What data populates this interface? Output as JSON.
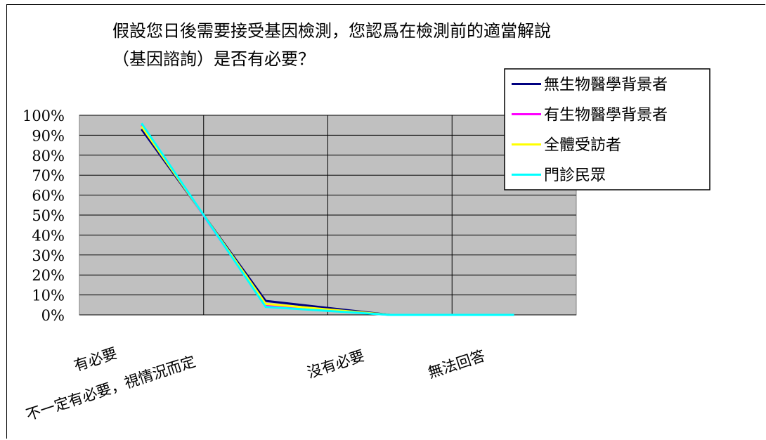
{
  "chart_data": {
    "type": "line",
    "title": "假設您日後需要接受基因檢測，您認爲在檢測前的適當解說（基因諮詢）是否有必要？",
    "title_lines": [
      "假設您日後需要接受基因檢測，您認爲在檢測前的適當解說",
      "（基因諮詢）是否有必要？"
    ],
    "categories": [
      "有必要",
      "不一定有必要，視情況而定",
      "沒有必要",
      "無法回答"
    ],
    "y_ticks": [
      "100%",
      "90%",
      "80%",
      "70%",
      "60%",
      "50%",
      "40%",
      "30%",
      "20%",
      "10%",
      "0%"
    ],
    "ylim": [
      0,
      100
    ],
    "y_unit": "%",
    "grid": true,
    "plot_background": "#c0c0c0",
    "legend_position": "top-right",
    "series": [
      {
        "name": "無生物醫學背景者",
        "color": "#000080",
        "values": [
          93,
          7,
          0,
          0
        ]
      },
      {
        "name": "有生物醫學背景者",
        "color": "#ff00ff",
        "values": [
          95,
          4.5,
          0,
          0
        ]
      },
      {
        "name": "全體受訪者",
        "color": "#ffff00",
        "values": [
          94.5,
          5.5,
          0,
          0
        ]
      },
      {
        "name": "門診民眾",
        "color": "#00ffff",
        "values": [
          96,
          4,
          0,
          0
        ]
      }
    ]
  }
}
